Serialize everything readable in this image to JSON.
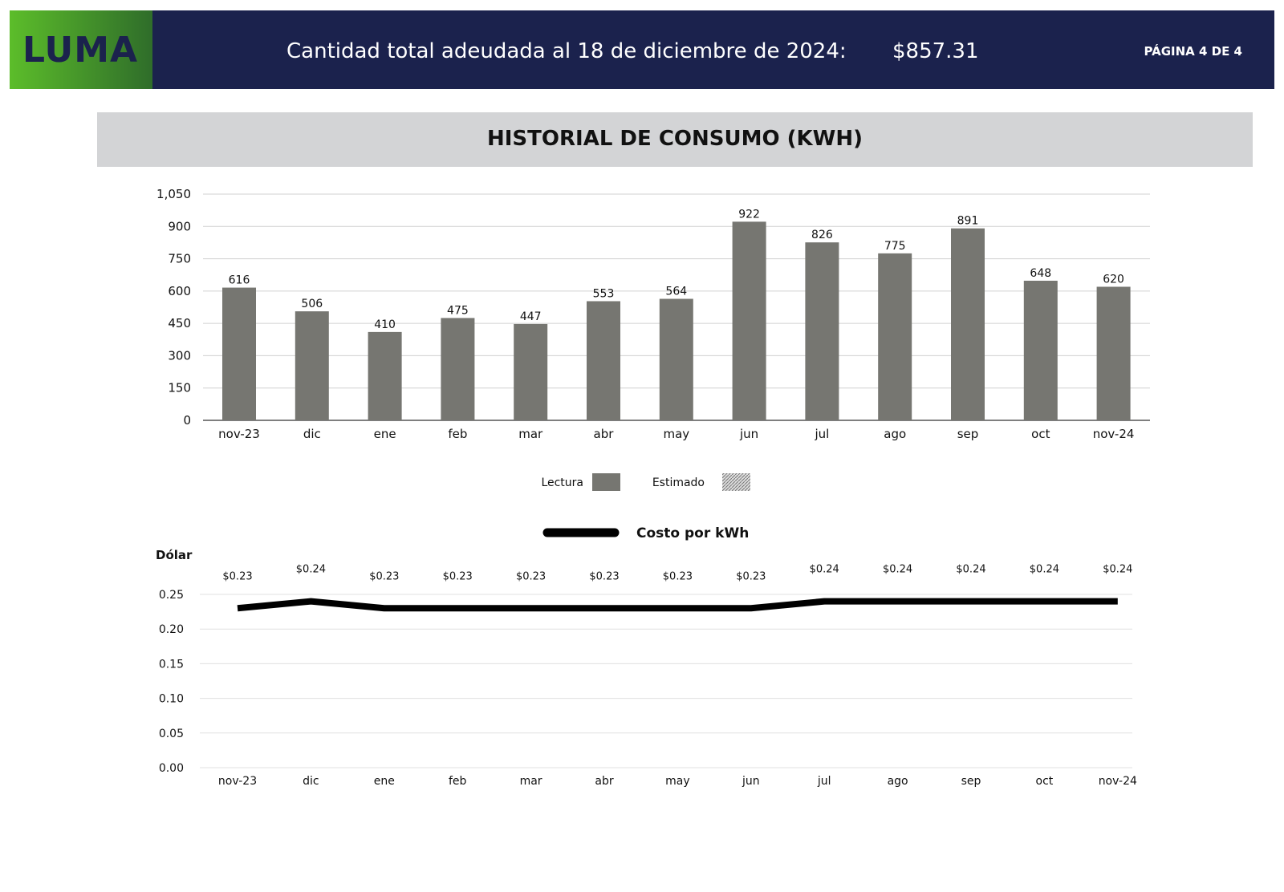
{
  "header": {
    "logo_text": "LUMA",
    "title": "Cantidad total adeudada al 18 de diciembre de 2024:",
    "amount": "$857.31",
    "page": "PÁGINA 4 DE 4",
    "bg_color": "#1b224d"
  },
  "section": {
    "title": "HISTORIAL DE CONSUMO (KWH)"
  },
  "chart_data": [
    {
      "type": "bar",
      "categories": [
        "nov-23",
        "dic",
        "ene",
        "feb",
        "mar",
        "abr",
        "may",
        "jun",
        "jul",
        "ago",
        "sep",
        "oct",
        "nov-24"
      ],
      "values": [
        616,
        506,
        410,
        475,
        447,
        553,
        564,
        922,
        826,
        775,
        891,
        648,
        620
      ],
      "data_labels": [
        "616",
        "506",
        "410",
        "475",
        "447",
        "553",
        "564",
        "922",
        "826",
        "775",
        "891",
        "648",
        "620"
      ],
      "ylim": [
        0,
        1050
      ],
      "yticks": [
        "0",
        "150",
        "300",
        "450",
        "600",
        "750",
        "900",
        "1,050"
      ],
      "ytick_values": [
        0,
        150,
        300,
        450,
        600,
        750,
        900,
        1050
      ],
      "grid": true,
      "bar_color": "#767671",
      "legend": {
        "placement": "bottom",
        "entries": [
          {
            "label": "Lectura",
            "style": "solid"
          },
          {
            "label": "Estimado",
            "style": "hatched"
          }
        ]
      }
    },
    {
      "type": "line",
      "categories": [
        "nov-23",
        "dic",
        "ene",
        "feb",
        "mar",
        "abr",
        "may",
        "jun",
        "jul",
        "ago",
        "sep",
        "oct",
        "nov-24"
      ],
      "values": [
        0.23,
        0.24,
        0.23,
        0.23,
        0.23,
        0.23,
        0.23,
        0.23,
        0.24,
        0.24,
        0.24,
        0.24,
        0.24
      ],
      "data_labels": [
        "$0.23",
        "$0.24",
        "$0.23",
        "$0.23",
        "$0.23",
        "$0.23",
        "$0.23",
        "$0.23",
        "$0.24",
        "$0.24",
        "$0.24",
        "$0.24",
        "$0.24"
      ],
      "ylabel": "Dólar",
      "ylim": [
        0,
        0.25
      ],
      "yticks": [
        "0.00",
        "0.05",
        "0.10",
        "0.15",
        "0.20",
        "0.25"
      ],
      "ytick_values": [
        0,
        0.05,
        0.1,
        0.15,
        0.2,
        0.25
      ],
      "grid": true,
      "line_color": "#000000",
      "legend": {
        "placement": "top",
        "entries": [
          {
            "label": "Costo por kWh"
          }
        ]
      }
    }
  ]
}
